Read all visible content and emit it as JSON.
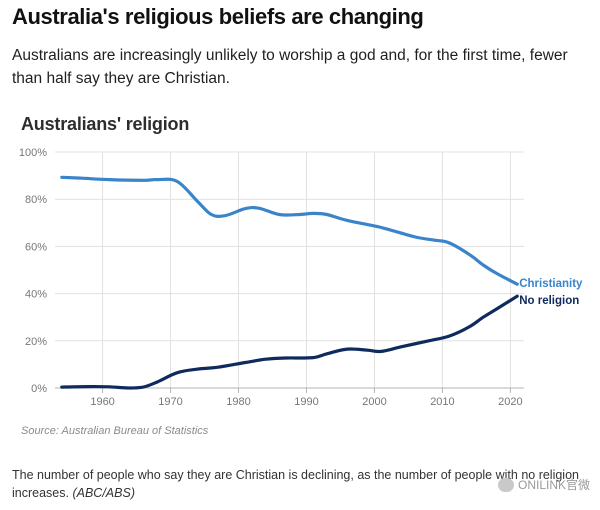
{
  "headline": "Australia's religious beliefs are changing",
  "dek": "Australians are increasingly unlikely to worship a god and, for the first time, fewer than half say they are Christian.",
  "source": "Source: Australian Bureau of Statistics",
  "caption": {
    "text": "The number of people who say they are Christian is declining, as the number of people with no religion increases.",
    "credit": "(ABC/ABS)"
  },
  "watermark": {
    "text": "ONILINK官微"
  },
  "colors": {
    "christianity": "#3a84c9",
    "no_religion": "#0f2a5c",
    "grid": "#e1e1e1",
    "axis": "#b5b5b5",
    "tick_text": "#777777"
  },
  "chart_data": {
    "type": "line",
    "title": "Australians' religion",
    "xlabel": "",
    "ylabel": "",
    "xlim": [
      1953,
      2022
    ],
    "ylim": [
      0,
      100
    ],
    "x_ticks": [
      1960,
      1970,
      1980,
      1990,
      2000,
      2010,
      2020
    ],
    "y_ticks": [
      0,
      20,
      40,
      60,
      80,
      100
    ],
    "y_tick_labels": [
      "0%",
      "20%",
      "40%",
      "60%",
      "80%",
      "100%"
    ],
    "grid": true,
    "series": [
      {
        "name": "Christianity",
        "color": "#3a84c9",
        "x": [
          1954,
          1957,
          1961,
          1966,
          1968,
          1971,
          1974,
          1976,
          1978,
          1981,
          1983,
          1986,
          1989,
          1991,
          1993,
          1996,
          2001,
          2006,
          2009,
          2011,
          2014,
          2016,
          2018,
          2021
        ],
        "y": [
          89.3,
          88.9,
          88.3,
          88.0,
          88.3,
          87.5,
          79.0,
          73.5,
          73.0,
          76.0,
          76.2,
          73.5,
          73.5,
          74.0,
          73.5,
          71.0,
          68.0,
          64.0,
          62.6,
          61.5,
          56.5,
          52.1,
          48.5,
          44.0
        ]
      },
      {
        "name": "No religion",
        "color": "#0f2a5c",
        "x": [
          1954,
          1958,
          1961,
          1964,
          1966,
          1968,
          1971,
          1974,
          1977,
          1981,
          1984,
          1987,
          1991,
          1993,
          1996,
          1999,
          2001,
          2004,
          2008,
          2011,
          2014,
          2016,
          2018,
          2021
        ],
        "y": [
          0.4,
          0.6,
          0.5,
          0.0,
          0.4,
          2.5,
          6.5,
          8.0,
          8.8,
          10.8,
          12.2,
          12.7,
          12.9,
          14.5,
          16.5,
          16.0,
          15.5,
          17.5,
          20.0,
          22.0,
          26.0,
          30.0,
          33.5,
          38.9
        ]
      }
    ]
  }
}
